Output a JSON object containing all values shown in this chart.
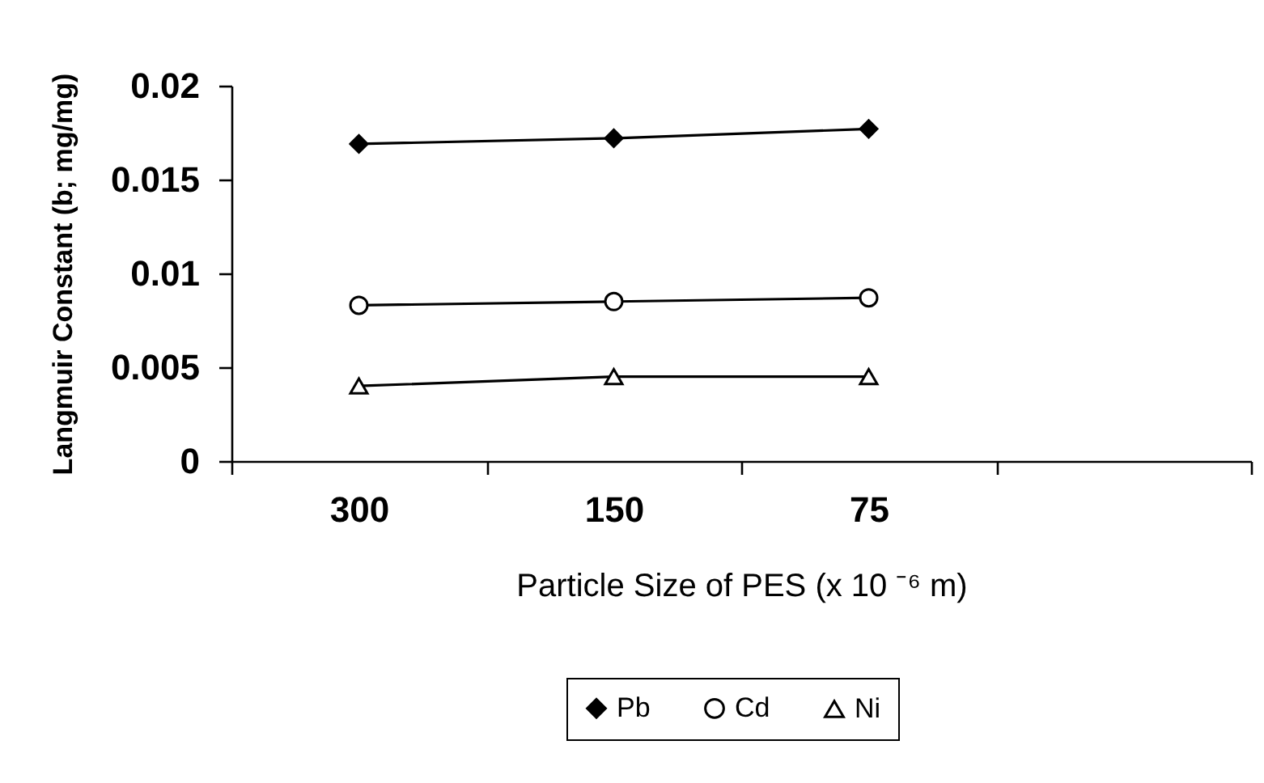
{
  "chart_data": {
    "type": "line",
    "xlabel": "Particle Size of PES (x 10 ⁻⁶ m)",
    "ylabel": "Langmuir Constant (b; mg/mg)",
    "categories": [
      "300",
      "150",
      "75",
      null
    ],
    "series": [
      {
        "name": "Pb",
        "color": "#000000",
        "marker": "diamond",
        "values": [
          0.0169,
          0.0172,
          0.0177,
          null
        ]
      },
      {
        "name": "Cd",
        "color": "#000000",
        "marker": "circle",
        "values": [
          0.0083,
          0.0085,
          0.0087,
          null
        ]
      },
      {
        "name": "Ni",
        "color": "#000000",
        "marker": "triangle",
        "values": [
          0.004,
          0.0045,
          0.0045,
          null
        ]
      }
    ],
    "ylim": [
      0,
      0.02
    ],
    "yticks": [
      0,
      0.005,
      0.01,
      0.015,
      0.02
    ],
    "legend": "bottom",
    "line_style": "solid"
  }
}
